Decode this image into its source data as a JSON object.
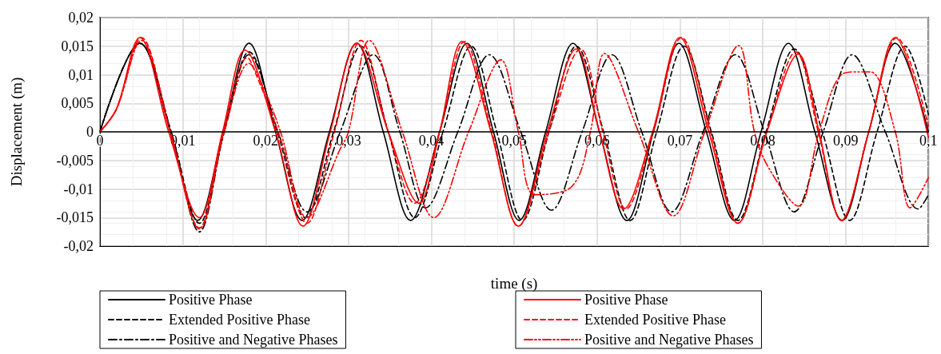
{
  "chart_data": {
    "type": "line",
    "xlabel": "time (s)",
    "ylabel": "Displacement (m)",
    "xlim": [
      0,
      0.1
    ],
    "ylim": [
      -0.02,
      0.02
    ],
    "xticks": [
      0,
      {
        "value": 0.01,
        "label": "0,01"
      },
      {
        "value": 0.02,
        "label": "0,02"
      },
      {
        "value": 0.03,
        "label": "0,03"
      },
      {
        "value": 0.04,
        "label": "0,04"
      },
      {
        "value": 0.05,
        "label": "0,05"
      },
      {
        "value": 0.06,
        "label": "0,06"
      },
      {
        "value": 0.07,
        "label": "0,07"
      },
      {
        "value": 0.08,
        "label": "0,08"
      },
      {
        "value": 0.09,
        "label": "0,09"
      },
      {
        "value": 0.1,
        "label": "0,1"
      }
    ],
    "yticks": [
      {
        "value": -0.02,
        "label": "-0,02"
      },
      {
        "value": -0.015,
        "label": "-0,015"
      },
      {
        "value": -0.01,
        "label": "-0,01"
      },
      {
        "value": -0.005,
        "label": "-0,005"
      },
      0,
      {
        "value": 0.005,
        "label": "0,005"
      },
      {
        "value": 0.01,
        "label": "0,01"
      },
      {
        "value": 0.015,
        "label": "0,015"
      },
      {
        "value": 0.02,
        "label": "0,02"
      }
    ],
    "grid": true,
    "legend": "bottom",
    "marker": "none",
    "series": [
      {
        "name": "Positive Phase",
        "color": "#000000",
        "line_style": "solid",
        "x": [
          0,
          0.0048,
          0.0085,
          0.0118,
          0.0149,
          0.018,
          0.0212,
          0.0244,
          0.0277,
          0.031,
          0.0342,
          0.0375,
          0.041,
          0.0443,
          0.0475,
          0.0506,
          0.0538,
          0.0571,
          0.0603,
          0.0636,
          0.0668,
          0.0699,
          0.0732,
          0.0766,
          0.0798,
          0.0831,
          0.0863,
          0.0896,
          0.0928,
          0.096,
          0.1
        ],
        "values": [
          0,
          0.0155,
          0,
          -0.0155,
          0,
          0.0155,
          0,
          -0.0155,
          0,
          0.0155,
          0,
          -0.0155,
          0,
          0.0155,
          0,
          -0.0155,
          0,
          0.0155,
          0,
          -0.0155,
          0,
          0.0155,
          0,
          -0.0155,
          0,
          0.0155,
          0,
          -0.0155,
          0,
          0.0155,
          0
        ]
      },
      {
        "name": "Extended Positive Phase",
        "color": "#000000",
        "line_style": "dashed",
        "x": [
          0,
          0.0048,
          0.0086,
          0.012,
          0.015,
          0.018,
          0.0214,
          0.0248,
          0.0282,
          0.0315,
          0.0348,
          0.038,
          0.0414,
          0.0448,
          0.0479,
          0.051,
          0.0542,
          0.0575,
          0.0608,
          0.064,
          0.0672,
          0.0705,
          0.0738,
          0.077,
          0.0804,
          0.0838,
          0.0872,
          0.0905,
          0.0938,
          0.0972,
          0.1
        ],
        "values": [
          0,
          0.0155,
          0,
          -0.016,
          0,
          0.014,
          0,
          -0.015,
          0,
          0.015,
          0,
          -0.015,
          0,
          0.015,
          0,
          -0.0155,
          0,
          0.015,
          0,
          -0.0155,
          0,
          0.015,
          0,
          -0.0155,
          0,
          0.0145,
          0,
          -0.0155,
          0,
          0.015,
          0.003
        ]
      },
      {
        "name": "Positive and Negative Phases",
        "color": "#000000",
        "line_style": "dashdot",
        "x": [
          0,
          0.0048,
          0.0086,
          0.012,
          0.015,
          0.018,
          0.0215,
          0.025,
          0.029,
          0.033,
          0.0362,
          0.0393,
          0.0432,
          0.047,
          0.0508,
          0.0545,
          0.0582,
          0.0618,
          0.0654,
          0.069,
          0.0728,
          0.0767,
          0.0802,
          0.0838,
          0.0873,
          0.0908,
          0.0948,
          0.0988,
          0.1
        ],
        "values": [
          0,
          0.0155,
          0,
          -0.0175,
          0,
          0.0135,
          0,
          -0.014,
          0,
          0.0135,
          0,
          -0.0133,
          0,
          0.0135,
          0,
          -0.0137,
          0,
          0.0135,
          0,
          -0.014,
          0,
          0.0135,
          0,
          -0.014,
          0,
          0.0135,
          0,
          -0.0135,
          -0.011
        ]
      },
      {
        "name": "Positive Phase",
        "color": "#ff0000",
        "line_style": "solid",
        "x": [
          0,
          0.002,
          0.0048,
          0.0083,
          0.012,
          0.0148,
          0.0175,
          0.0212,
          0.0245,
          0.0278,
          0.031,
          0.0348,
          0.0385,
          0.041,
          0.0437,
          0.0472,
          0.0505,
          0.054,
          0.0575,
          0.0603,
          0.0632,
          0.0667,
          0.07,
          0.0735,
          0.077,
          0.0805,
          0.0843,
          0.0868,
          0.0895,
          0.0928,
          0.096,
          0.1
        ],
        "values": [
          0,
          0.004,
          0.0165,
          0,
          -0.015,
          0,
          0.0143,
          0,
          -0.0165,
          0,
          0.0155,
          0,
          -0.0125,
          0,
          0.0158,
          0,
          -0.0165,
          0,
          0.0145,
          0,
          -0.0135,
          0,
          0.0165,
          0,
          -0.016,
          0,
          0.0136,
          0,
          -0.0155,
          0,
          0.0165,
          -0.001
        ]
      },
      {
        "name": "Extended Positive Phase",
        "color": "#ff0000",
        "line_style": "dashed",
        "x": [
          0,
          0.002,
          0.005,
          0.0085,
          0.012,
          0.0149,
          0.0178,
          0.019,
          0.0215,
          0.025,
          0.0283,
          0.0315,
          0.0348,
          0.038,
          0.041,
          0.044,
          0.0473,
          0.0505,
          0.0542,
          0.058,
          0.0607,
          0.0635,
          0.0668,
          0.0702,
          0.0737,
          0.077,
          0.0805,
          0.084,
          0.0867,
          0.0895,
          0.0928,
          0.0962,
          0.1
        ],
        "values": [
          0,
          0.004,
          0.0165,
          0,
          -0.0168,
          0,
          0.013,
          0.0095,
          0,
          -0.016,
          0,
          0.016,
          0,
          -0.0125,
          0,
          0.0158,
          0,
          -0.0165,
          0,
          0.0145,
          0,
          -0.0135,
          0,
          0.0165,
          0,
          -0.016,
          0,
          0.014,
          0,
          -0.0155,
          0,
          0.0165,
          0.001
        ]
      },
      {
        "name": "Positive and Negative Phases",
        "color": "#ff0000",
        "line_style": "dashdotdot",
        "x": [
          0,
          0.002,
          0.005,
          0.0085,
          0.012,
          0.015,
          0.018,
          0.0195,
          0.0218,
          0.025,
          0.029,
          0.03,
          0.0325,
          0.0365,
          0.0403,
          0.0445,
          0.0484,
          0.0505,
          0.0525,
          0.057,
          0.0592,
          0.0609,
          0.065,
          0.0692,
          0.073,
          0.0771,
          0.079,
          0.0808,
          0.0843,
          0.0868,
          0.0895,
          0.0915,
          0.093,
          0.096,
          0.0978,
          0.1
        ],
        "values": [
          0,
          0.004,
          0.016,
          0,
          -0.017,
          0,
          0.012,
          0.0085,
          0,
          -0.015,
          -0.003,
          0,
          0.016,
          0,
          -0.015,
          0,
          0.0126,
          0,
          -0.011,
          -0.0095,
          0,
          0.0137,
          0,
          -0.0147,
          0,
          0.0151,
          0,
          -0.0065,
          -0.013,
          0,
          0.01,
          0.0105,
          0.0105,
          0,
          -0.0133,
          -0.008
        ]
      }
    ]
  }
}
